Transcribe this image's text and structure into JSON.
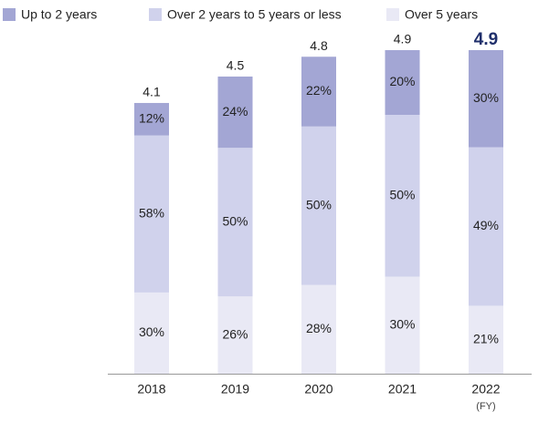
{
  "chart_data": {
    "type": "stacked_bar_percent",
    "categories": [
      "2018",
      "2019",
      "2020",
      "2021",
      "2022"
    ],
    "x_label": "(FY)",
    "totals": [
      4.1,
      4.5,
      4.8,
      4.9,
      4.9
    ],
    "series": [
      {
        "name": "Up to 2 years",
        "color": "#a3a6d4",
        "values": [
          12,
          24,
          22,
          20,
          30
        ],
        "value_labels": [
          "12%",
          "24%",
          "22%",
          "20%",
          "30%"
        ]
      },
      {
        "name": "Over 2 years to 5 years or less",
        "color": "#d0d2ec",
        "values": [
          58,
          50,
          50,
          50,
          49
        ],
        "value_labels": [
          "58%",
          "50%",
          "50%",
          "50%",
          "49%"
        ]
      },
      {
        "name": "Over 5 years",
        "color": "#e9e9f5",
        "values": [
          30,
          26,
          28,
          30,
          21
        ],
        "value_labels": [
          "30%",
          "26%",
          "28%",
          "30%",
          "21%"
        ]
      }
    ]
  }
}
